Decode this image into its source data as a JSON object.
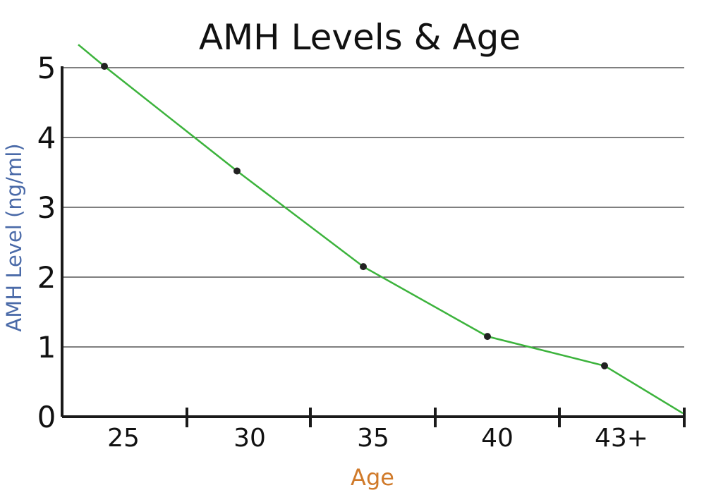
{
  "chart_data": {
    "type": "line",
    "title": "AMH Levels & Age",
    "xlabel": "Age",
    "ylabel": "AMH Level (ng/ml)",
    "ylim": [
      0,
      5
    ],
    "yticks": [
      "0",
      "1",
      "2",
      "3",
      "4",
      "5"
    ],
    "categories": [
      "25",
      "30",
      "35",
      "40",
      "43+"
    ],
    "highlight_category": "43+",
    "grid": true,
    "series": [
      {
        "points": [
          {
            "category": "25",
            "value": 5.02
          },
          {
            "category": "30",
            "value": 3.52
          },
          {
            "category": "35",
            "value": 2.15
          },
          {
            "category": "40",
            "value": 1.15
          },
          {
            "category": "43+",
            "value": 0.73
          }
        ],
        "line_start": 5.33,
        "line_end": 0.05
      }
    ]
  },
  "colors": {
    "line": "#3cb33c",
    "points": "#222222",
    "axis": "#1a1a1a",
    "grid": "#333333",
    "ylabel": "#4a6aa8",
    "xlabel": "#d07a2a",
    "highlight": "#d63a3a"
  }
}
